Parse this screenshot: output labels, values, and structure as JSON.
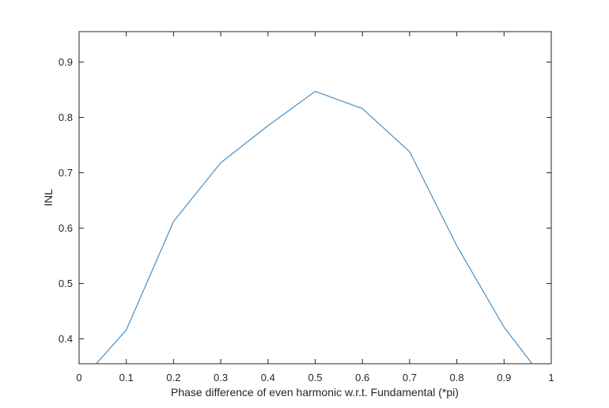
{
  "chart_data": {
    "type": "line",
    "title": "",
    "xlabel": "Phase difference of even harmonic w.r.t. Fundamental (*pi)",
    "ylabel": "INL",
    "xlim": [
      0,
      1
    ],
    "ylim": [
      0.355,
      0.955
    ],
    "xticks": [
      0,
      0.1,
      0.2,
      0.3,
      0.4,
      0.5,
      0.6,
      0.7,
      0.8,
      0.9,
      1
    ],
    "xtick_labels": [
      "0",
      "0.1",
      "0.2",
      "0.3",
      "0.4",
      "0.5",
      "0.6",
      "0.7",
      "0.8",
      "0.9",
      "1"
    ],
    "yticks": [
      0.4,
      0.5,
      0.6,
      0.7,
      0.8,
      0.9
    ],
    "ytick_labels": [
      "0.4",
      "0.5",
      "0.6",
      "0.7",
      "0.8",
      "0.9"
    ],
    "grid": false,
    "series": [
      {
        "color": "#4a90c4",
        "x": [
          0,
          0.1,
          0.2,
          0.3,
          0.4,
          0.5,
          0.6,
          0.7,
          0.8,
          0.9,
          1.0
        ],
        "y": [
          0.32,
          0.416,
          0.612,
          0.718,
          0.785,
          0.847,
          0.816,
          0.738,
          0.568,
          0.421,
          0.31
        ]
      }
    ]
  }
}
